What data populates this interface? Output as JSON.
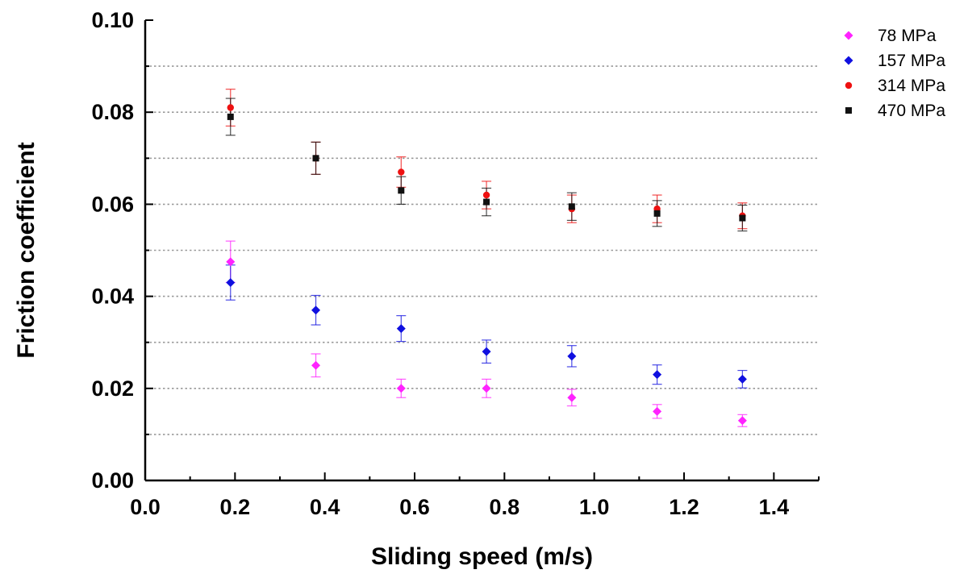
{
  "chart_data": {
    "type": "scatter",
    "title": "",
    "xlabel": "Sliding speed (m/s)",
    "ylabel": "Friction coefficient",
    "xlim": [
      0.0,
      1.5
    ],
    "ylim": [
      0.0,
      0.1
    ],
    "x_ticks": [
      "0.0",
      "0.2",
      "0.4",
      "0.6",
      "0.8",
      "1.0",
      "1.2",
      "1.4"
    ],
    "y_ticks": [
      "0.00",
      "0.02",
      "0.04",
      "0.06",
      "0.08",
      "0.10"
    ],
    "grid": "horizontal dotted at every 0.01",
    "legend_position": "top-right",
    "error_bars": true,
    "series": [
      {
        "name": "78 MPa",
        "color": "#ff22ff",
        "marker": "diamond",
        "x": [
          0.19,
          0.38,
          0.57,
          0.76,
          0.95,
          1.14,
          1.33
        ],
        "y": [
          0.0475,
          0.025,
          0.02,
          0.02,
          0.018,
          0.015,
          0.013
        ],
        "err": [
          0.0045,
          0.0025,
          0.002,
          0.002,
          0.0018,
          0.0015,
          0.0013
        ]
      },
      {
        "name": "157 MPa",
        "color": "#1010e0",
        "marker": "diamond",
        "x": [
          0.19,
          0.38,
          0.57,
          0.76,
          0.95,
          1.14,
          1.33
        ],
        "y": [
          0.043,
          0.037,
          0.033,
          0.028,
          0.027,
          0.023,
          0.022
        ],
        "err": [
          0.0038,
          0.0032,
          0.0028,
          0.0025,
          0.0023,
          0.0021,
          0.0019
        ]
      },
      {
        "name": "314 MPa",
        "color": "#ee1111",
        "marker": "circle",
        "x": [
          0.19,
          0.38,
          0.57,
          0.76,
          0.95,
          1.14,
          1.33
        ],
        "y": [
          0.081,
          0.07,
          0.067,
          0.062,
          0.059,
          0.059,
          0.0575
        ],
        "err": [
          0.004,
          0.0035,
          0.0033,
          0.003,
          0.003,
          0.003,
          0.0028
        ]
      },
      {
        "name": "470 MPa",
        "color": "#111111",
        "marker": "square",
        "x": [
          0.19,
          0.38,
          0.57,
          0.76,
          0.95,
          1.14,
          1.33
        ],
        "y": [
          0.079,
          0.07,
          0.063,
          0.0605,
          0.0595,
          0.058,
          0.057
        ],
        "err": [
          0.004,
          0.0035,
          0.003,
          0.003,
          0.003,
          0.0028,
          0.0028
        ]
      }
    ]
  }
}
